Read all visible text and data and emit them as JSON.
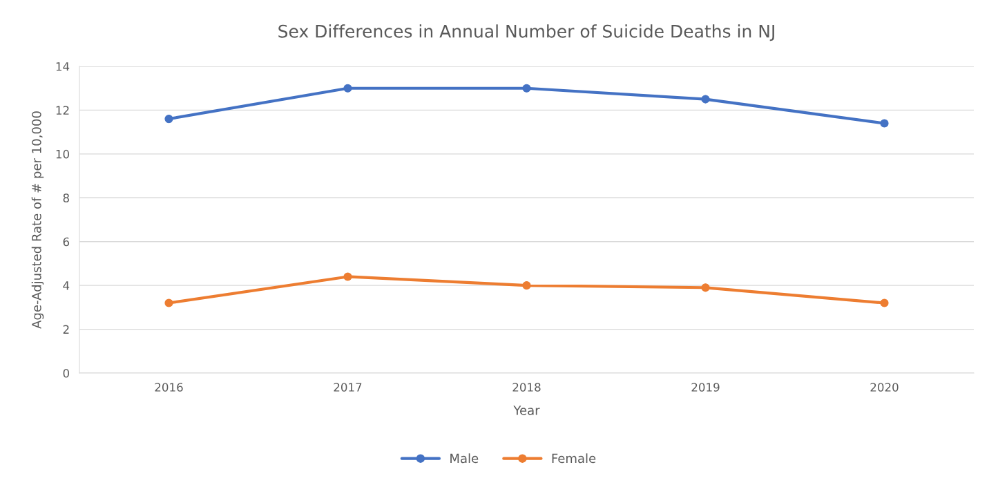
{
  "chart_data": {
    "type": "line",
    "title": "Sex Differences in Annual Number of Suicide Deaths in NJ",
    "xlabel": "Year",
    "ylabel": "Age-Adjusted Rate of # per 10,000",
    "categories": [
      "2016",
      "2017",
      "2018",
      "2019",
      "2020"
    ],
    "series": [
      {
        "name": "Male",
        "color": "#4472c4",
        "values": [
          11.6,
          13.0,
          13.0,
          12.5,
          11.4
        ]
      },
      {
        "name": "Female",
        "color": "#ed7d31",
        "values": [
          3.2,
          4.4,
          4.0,
          3.9,
          3.2
        ]
      }
    ],
    "ylim": [
      0,
      14
    ],
    "yticks": [
      0,
      2,
      4,
      6,
      8,
      10,
      12,
      14
    ],
    "grid": "y",
    "legend": "bottom",
    "marker": "circle",
    "line_style": "solid"
  }
}
